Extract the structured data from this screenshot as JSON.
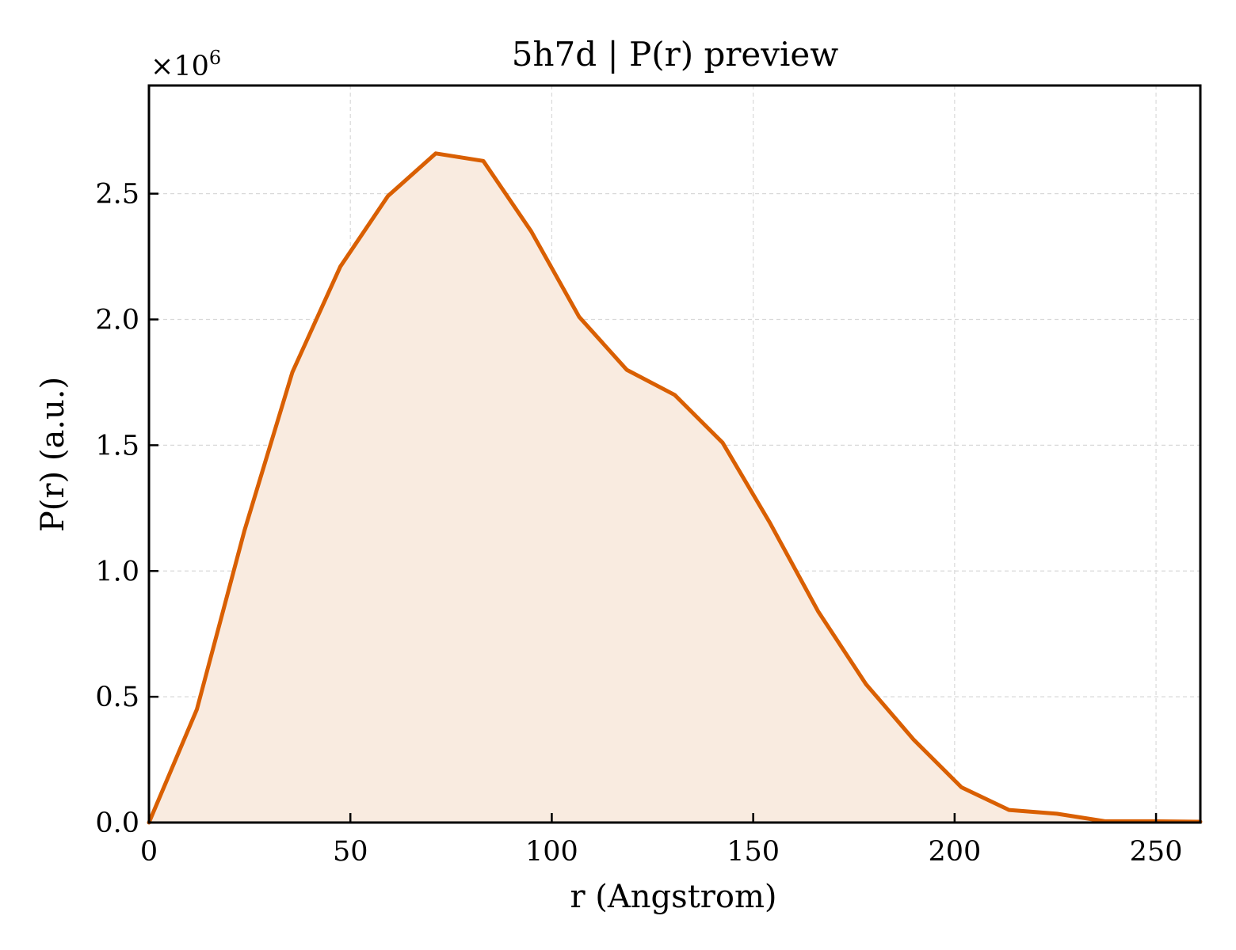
{
  "chart_data": {
    "type": "area",
    "title": "5h7d | P(r) preview",
    "xlabel": "r (Angstrom)",
    "ylabel": "P(r) (a.u.)",
    "y_multiplier": {
      "base": "×10",
      "exponent": "6"
    },
    "xlim": [
      0,
      261
    ],
    "ylim": [
      0,
      2.93
    ],
    "x_ticks": [
      0,
      50,
      100,
      150,
      200,
      250
    ],
    "x_tick_labels": [
      "0",
      "50",
      "100",
      "150",
      "200",
      "250"
    ],
    "y_ticks": [
      0,
      0.5,
      1.0,
      1.5,
      2.0,
      2.5
    ],
    "y_tick_labels": [
      "0.0",
      "0.5",
      "1.0",
      "1.5",
      "2.0",
      "2.5"
    ],
    "grid": true,
    "colors": {
      "line": "#d95f02",
      "fill": "#f9ebe0",
      "grid": "#d9d9d9",
      "axes": "#000000"
    },
    "series": [
      {
        "x": [
          0,
          11.9,
          23.7,
          35.6,
          47.5,
          59.3,
          71.2,
          83.0,
          94.9,
          106.8,
          118.6,
          130.5,
          142.4,
          154.2,
          166.1,
          178.0,
          189.8,
          201.7,
          213.5,
          225.4,
          237.3,
          249.1,
          261.0
        ],
        "values": [
          0,
          0.45,
          1.16,
          1.79,
          2.21,
          2.49,
          2.66,
          2.63,
          2.35,
          2.01,
          1.8,
          1.7,
          1.51,
          1.19,
          0.84,
          0.55,
          0.33,
          0.14,
          0.05,
          0.035,
          0.005,
          0.005,
          0.003
        ]
      }
    ]
  }
}
